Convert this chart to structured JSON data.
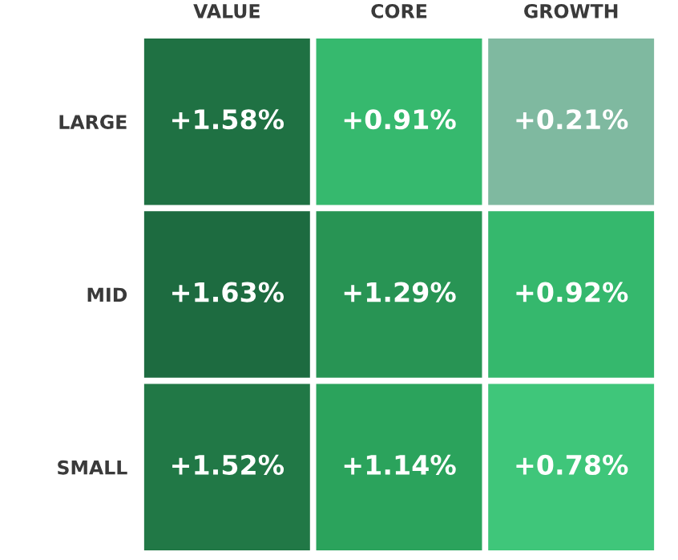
{
  "chart_data": {
    "type": "heatmap",
    "categories": [
      "VALUE",
      "CORE",
      "GROWTH"
    ],
    "y_categories": [
      "LARGE",
      "MID",
      "SMALL"
    ],
    "cells": [
      [
        1.58,
        0.91,
        0.21
      ],
      [
        1.63,
        1.29,
        0.92
      ],
      [
        1.52,
        1.14,
        0.78
      ]
    ],
    "cell_labels": [
      [
        "+1.58%",
        "+0.91%",
        "+0.21%"
      ],
      [
        "+1.63%",
        "+1.29%",
        "+0.92%"
      ],
      [
        "+1.52%",
        "+1.14%",
        "+0.78%"
      ]
    ],
    "colors": [
      "#7fb9a0",
      "#5fbf8d",
      "#3fc67a",
      "#2cab60",
      "#278e51",
      "#1d6b40"
    ]
  }
}
